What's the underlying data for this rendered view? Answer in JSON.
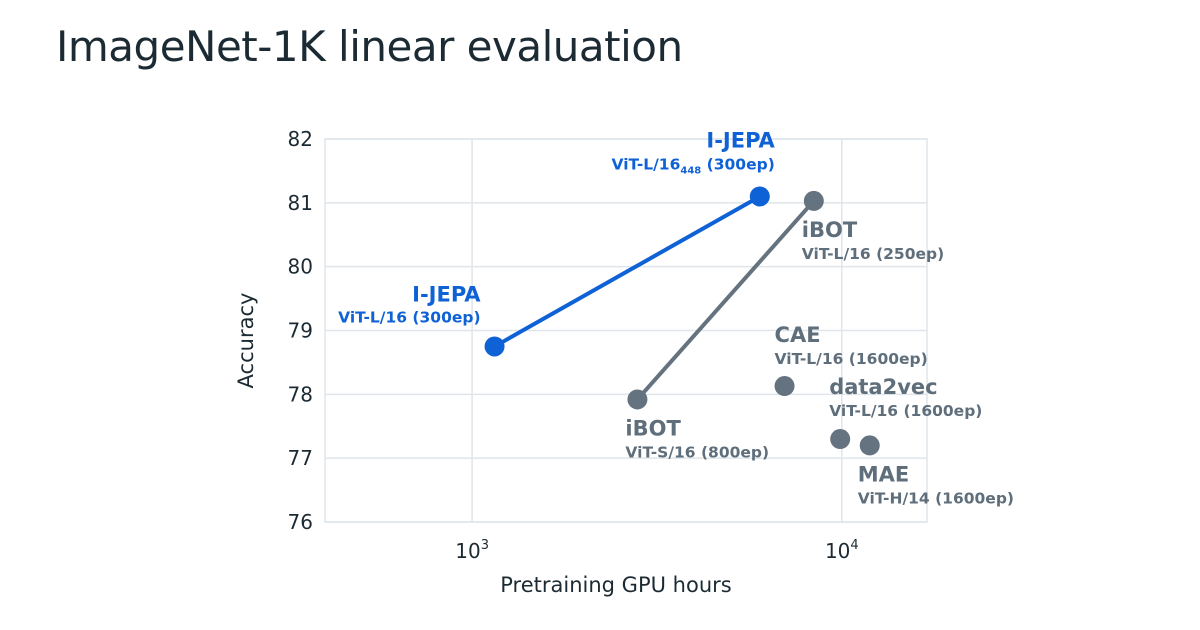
{
  "title": "ImageNet-1K linear evaluation",
  "chart_data": {
    "type": "scatter",
    "title": "ImageNet-1K linear evaluation",
    "xlabel": "Pretraining GPU hours",
    "ylabel": "Accuracy",
    "xscale": "log",
    "xlim": [
      400,
      17000
    ],
    "ylim": [
      76,
      82
    ],
    "yticks": [
      "76",
      "77",
      "78",
      "79",
      "80",
      "81",
      "82"
    ],
    "xticks": [
      {
        "value": 1000,
        "base": "10",
        "exp": "3"
      },
      {
        "value": 10000,
        "base": "10",
        "exp": "4"
      }
    ],
    "grid": true,
    "colors": {
      "ijepa": "#0f62d6",
      "other": "#65727f",
      "grid": "#dfe5ea"
    },
    "lines": [
      {
        "series": "I-JEPA",
        "color": "ijepa",
        "points": [
          [
            1150,
            78.75
          ],
          [
            6000,
            81.1
          ]
        ]
      },
      {
        "series": "iBOT",
        "color": "other",
        "points": [
          [
            2800,
            77.92
          ],
          [
            8400,
            81.03
          ]
        ]
      }
    ],
    "points": [
      {
        "name": "I-JEPA",
        "config": "ViT-L/16 (300ep)",
        "x": 1150,
        "y": 78.75,
        "color": "ijepa",
        "label": "left"
      },
      {
        "name": "I-JEPA",
        "config": "ViT-L/16",
        "sub": "448",
        "config_tail": " (300ep)",
        "x": 6000,
        "y": 81.1,
        "color": "ijepa",
        "label": "above-left"
      },
      {
        "name": "iBOT",
        "config": "ViT-S/16 (800ep)",
        "x": 2800,
        "y": 77.92,
        "color": "other",
        "label": "below"
      },
      {
        "name": "iBOT",
        "config": "ViT-L/16 (250ep)",
        "x": 8400,
        "y": 81.03,
        "color": "other",
        "label": "below"
      },
      {
        "name": "CAE",
        "config": "ViT-L/16 (1600ep)",
        "x": 7000,
        "y": 78.13,
        "color": "other",
        "label": "above"
      },
      {
        "name": "data2vec",
        "config": "ViT-L/16 (1600ep)",
        "x": 9900,
        "y": 77.3,
        "color": "other",
        "label": "above-right"
      },
      {
        "name": "MAE",
        "config": "ViT-H/14 (1600ep)",
        "x": 11900,
        "y": 77.2,
        "color": "other",
        "label": "below"
      }
    ]
  }
}
